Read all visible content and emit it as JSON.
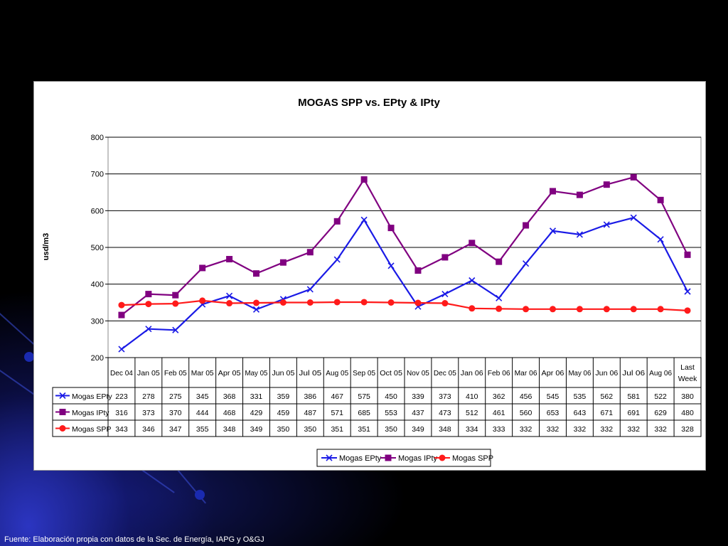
{
  "footer_text": "Fuente: Elaboración propia con datos de la Sec. de Energía, IAPG y O&GJ",
  "colors": {
    "epty": "#1a1ae6",
    "ipty": "#800080",
    "spp": "#ff1a1a",
    "background": "#000000",
    "panel": "#ffffff"
  },
  "chart_data": {
    "type": "line",
    "title": "MOGAS SPP vs. EPty & IPty",
    "ylabel": "usd/m3",
    "xlabel": "",
    "ylim": [
      200,
      800
    ],
    "yticks": [
      "200",
      "300",
      "400",
      "500",
      "600",
      "700",
      "800"
    ],
    "grid": true,
    "legend_position": "bottom",
    "categories": [
      "Dec 04",
      "Jan 05",
      "Feb 05",
      "Mar 05",
      "Apr 05",
      "May 05",
      "Jun 05",
      "Jul 05",
      "Aug 05",
      "Sep 05",
      "Oct 05",
      "Nov 05",
      "Dec 05",
      "Jan 06",
      "Feb 06",
      "Mar 06",
      "Apr 06",
      "May 06",
      "Jun 06",
      "Jul 06",
      "Aug 06",
      "Last Week"
    ],
    "series": [
      {
        "name": "Mogas EPty",
        "marker": "x",
        "values": [
          223,
          278,
          275,
          345,
          368,
          331,
          359,
          386,
          467,
          575,
          450,
          339,
          373,
          410,
          362,
          456,
          545,
          535,
          562,
          581,
          522,
          380
        ]
      },
      {
        "name": "Mogas IPty",
        "marker": "square",
        "values": [
          316,
          373,
          370,
          444,
          468,
          429,
          459,
          487,
          571,
          685,
          553,
          437,
          473,
          512,
          461,
          560,
          653,
          643,
          671,
          691,
          629,
          480
        ]
      },
      {
        "name": "Mogas SPP",
        "marker": "circle",
        "values": [
          343,
          346,
          347,
          355,
          348,
          349,
          350,
          350,
          351,
          351,
          350,
          349,
          348,
          334,
          333,
          332,
          332,
          332,
          332,
          332,
          332,
          328
        ]
      }
    ]
  }
}
